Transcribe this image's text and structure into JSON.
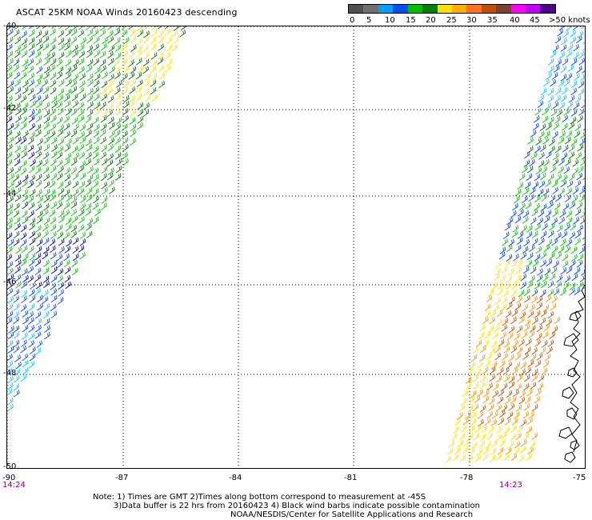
{
  "title": "ASCAT 25KM NOAA Winds 20160423 descending",
  "legend": {
    "colors": [
      "#505050",
      "#707070",
      "#00a0ff",
      "#0050ff",
      "#00c000",
      "#008000",
      "#ffe000",
      "#ffb000",
      "#ff7020",
      "#c05000",
      "#804030",
      "#ff00ff",
      "#c000ff",
      "#500090"
    ],
    "labels": [
      "0",
      "5",
      "10",
      "15",
      "20",
      "25",
      "30",
      "35",
      "40",
      "45",
      ">50 knots"
    ]
  },
  "axes": {
    "lon_labels": [
      "-90",
      "-87",
      "-84",
      "-81",
      "-78",
      "-75"
    ],
    "lat_labels": [
      "-40",
      "-42",
      "-44",
      "-46",
      "-48",
      "-50"
    ]
  },
  "times": {
    "left": "14:24",
    "right": "14:23"
  },
  "notes": {
    "line1": "Note: 1) Times are GMT 2)Times along bottom correspond to measurement at -45S",
    "line2": "3)Data buffer is 22 hrs from 20160423 4) Black wind barbs indicate possible contamination",
    "line3": "NOAA/NESDIS/Center for Satellite Applications and Research"
  },
  "palette": {
    "cyan": "#00c8ff",
    "blue": "#0040ff",
    "navy": "#0000a0",
    "green": "#00c000",
    "darkgreen": "#007000",
    "yellow": "#ffe000",
    "orange": "#ff9000",
    "brown": "#c05000",
    "black": "#000000"
  }
}
